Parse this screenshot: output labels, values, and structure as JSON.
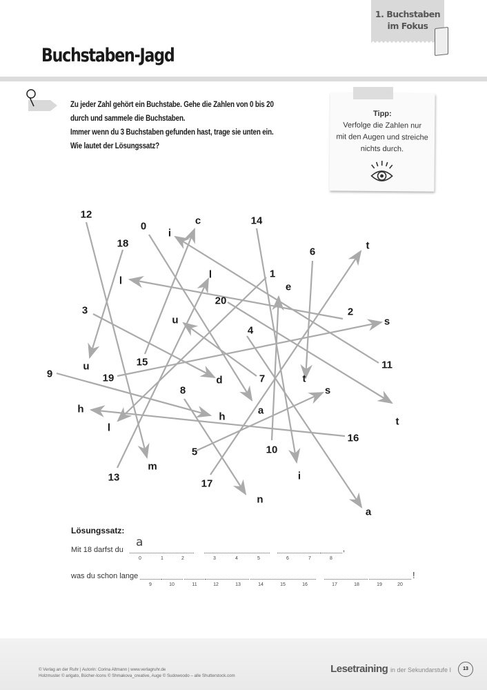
{
  "header": {
    "chapter_line1": "1. Buchstaben",
    "chapter_line2": "im Fokus",
    "title": "Buchstaben-Jagd"
  },
  "instructions": [
    "Zu jeder Zahl gehört ein Buchstabe. Gehe die Zahlen von 0 bis 20",
    "durch und sammele die Buchstaben.",
    "Immer wenn du 3 Buchstaben gefunden hast, trage sie unten ein.",
    "Wie lautet der Lösungssatz?"
  ],
  "tip": {
    "heading": "Tipp:",
    "lines": [
      "Verfolge die Zahlen nur",
      "mit den Augen und streiche",
      "nichts durch."
    ],
    "icon": "eye-icon"
  },
  "puzzle": [
    {
      "number": "0",
      "letter": "a"
    },
    {
      "number": "1",
      "letter": "l"
    },
    {
      "number": "2",
      "letter": "l"
    },
    {
      "number": "3",
      "letter": "d"
    },
    {
      "number": "4",
      "letter": "a"
    },
    {
      "number": "5",
      "letter": "s"
    },
    {
      "number": "6",
      "letter": "t"
    },
    {
      "number": "7",
      "letter": "u"
    },
    {
      "number": "8",
      "letter": "n"
    },
    {
      "number": "9",
      "letter": "h"
    },
    {
      "number": "10",
      "letter": "e"
    },
    {
      "number": "11",
      "letter": "i"
    },
    {
      "number": "12",
      "letter": "m"
    },
    {
      "number": "13",
      "letter": "l"
    },
    {
      "number": "14",
      "letter": "i"
    },
    {
      "number": "15",
      "letter": "c"
    },
    {
      "number": "16",
      "letter": "h"
    },
    {
      "number": "17",
      "letter": "t"
    },
    {
      "number": "18",
      "letter": "u"
    },
    {
      "number": "19",
      "letter": "s"
    },
    {
      "number": "20",
      "letter": "t"
    }
  ],
  "solution": {
    "heading": "Lösungssatz:",
    "line1_prefix": "Mit 18 darfst du",
    "line1_end": ",",
    "line2_prefix": "was du schon lange",
    "line2_end": "!",
    "filled_0": "a",
    "slot_numbers": [
      "0",
      "1",
      "2",
      "3",
      "4",
      "5",
      "6",
      "7",
      "8",
      "9",
      "10",
      "11",
      "12",
      "13",
      "14",
      "15",
      "16",
      "17",
      "18",
      "19",
      "20"
    ]
  },
  "footer": {
    "copyright": "© Verlag an der Ruhr | Autorin: Corina Altmann | www.verlagruhr.de",
    "credits": "Holzmuster © arigato, Bücher-Icons © Shmakova_creative, Auge © Sudowoodo – alle Shutterstock.com",
    "brand": "Lesetraining",
    "brand_sub": "in der Sekundarstufe I",
    "page": "13"
  }
}
